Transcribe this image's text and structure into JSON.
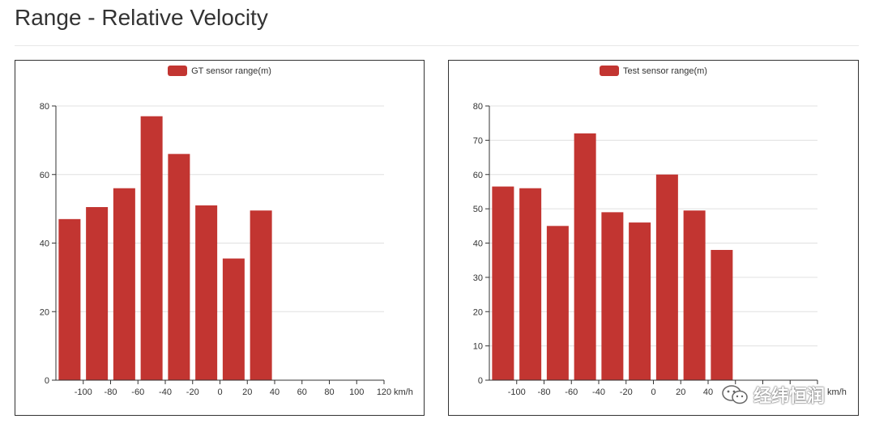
{
  "page": {
    "title": "Range - Relative Velocity"
  },
  "colors": {
    "bar": "#c23531",
    "grid": "#e0e0e0",
    "axis": "#333333"
  },
  "watermark": {
    "text": "经纬恒润",
    "icon": "wechat-icon"
  },
  "chart_data": [
    {
      "type": "bar",
      "legend": "GT sensor range(m)",
      "xunit": "km/h",
      "x_ticks": [
        -100,
        -80,
        -60,
        -40,
        -20,
        0,
        20,
        40,
        60,
        80,
        100,
        120
      ],
      "xlim": [
        -120,
        120
      ],
      "ylim": [
        0,
        80
      ],
      "y_ticks": [
        0,
        20,
        40,
        60,
        80
      ],
      "bars": [
        {
          "x": -110,
          "value": 47
        },
        {
          "x": -90,
          "value": 50.5
        },
        {
          "x": -70,
          "value": 56
        },
        {
          "x": -50,
          "value": 77
        },
        {
          "x": -30,
          "value": 66
        },
        {
          "x": -10,
          "value": 51
        },
        {
          "x": 10,
          "value": 35.5
        },
        {
          "x": 30,
          "value": 49.5
        }
      ]
    },
    {
      "type": "bar",
      "legend": "Test sensor range(m)",
      "xunit": "km/h",
      "x_ticks": [
        -100,
        -80,
        -60,
        -40,
        -20,
        0,
        20,
        40
      ],
      "xlim": [
        -120,
        120
      ],
      "ylim": [
        0,
        80
      ],
      "y_ticks": [
        0,
        10,
        20,
        30,
        40,
        50,
        60,
        70,
        80
      ],
      "bars": [
        {
          "x": -110,
          "value": 56.5
        },
        {
          "x": -90,
          "value": 56
        },
        {
          "x": -70,
          "value": 45
        },
        {
          "x": -50,
          "value": 72
        },
        {
          "x": -30,
          "value": 49
        },
        {
          "x": -10,
          "value": 46
        },
        {
          "x": 10,
          "value": 60
        },
        {
          "x": 30,
          "value": 49.5
        },
        {
          "x": 50,
          "value": 38
        }
      ]
    }
  ]
}
